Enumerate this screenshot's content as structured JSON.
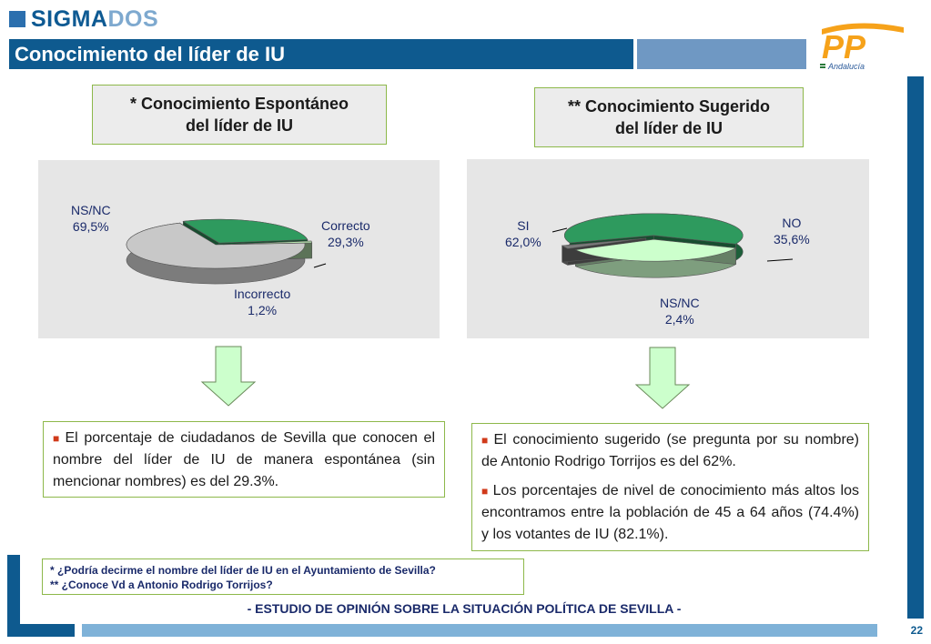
{
  "header": {
    "logo_part1": "SIGMA",
    "logo_part2": "DOS",
    "title": "Conocimiento del líder de IU",
    "party_logo_letters": "PP",
    "party_logo_sub": "Andalucía"
  },
  "colors": {
    "brand_blue": "#0e5a8f",
    "light_blue": "#7fb2d8",
    "box_border": "#8db84a",
    "slice_green": "#2e9a5e",
    "slice_gray": "#c8c8c8",
    "slice_light_green": "#b8e6b0",
    "slice_pale_green": "#ccffcc",
    "slice_dark_gray": "#7a7a7a"
  },
  "left_panel": {
    "title_line1": "* Conocimiento Espontáneo",
    "title_line2": "del líder de IU",
    "bullet_text": "El porcentaje de ciudadanos de Sevilla que conocen el nombre del líder de IU de manera espontánea (sin mencionar nombres) es del 29.3%."
  },
  "right_panel": {
    "title_line1": "** Conocimiento Sugerido",
    "title_line2": "del líder de IU",
    "bullets": [
      "El conocimiento sugerido (se pregunta por su nombre) de Antonio Rodrigo Torrijos es del 62%.",
      "Los porcentajes de nivel de conocimiento más altos los encontramos entre la población de 45 a 64 años (74.4%) y los votantes de IU (82.1%)."
    ]
  },
  "chart_data": [
    {
      "type": "pie",
      "categories": [
        "NS/NC",
        "Correcto",
        "Incorrecto"
      ],
      "values": [
        69.5,
        29.3,
        1.2
      ],
      "value_labels": [
        "69,5%",
        "29,3%",
        "1,2%"
      ],
      "colors": [
        "#c8c8c8",
        "#2e9a5e",
        "#b8e6b0"
      ],
      "exploded": [
        false,
        true,
        true
      ]
    },
    {
      "type": "pie",
      "categories": [
        "SI",
        "NO",
        "NS/NC"
      ],
      "values": [
        62.0,
        35.6,
        2.4
      ],
      "value_labels": [
        "62,0%",
        "35,6%",
        "2,4%"
      ],
      "colors": [
        "#2e9a5e",
        "#ccffcc",
        "#7a7a7a"
      ],
      "exploded": [
        true,
        true,
        true
      ]
    }
  ],
  "footnotes": {
    "q1": "*  ¿Podría decirme el nombre del líder de IU en el Ayuntamiento de Sevilla?",
    "q2": "**  ¿Conoce Vd a Antonio Rodrigo Torrijos?"
  },
  "footer": {
    "study_title": "- ESTUDIO DE OPINIÓN SOBRE LA SITUACIÓN POLÍTICA DE SEVILLA  -",
    "page_number": "22"
  }
}
